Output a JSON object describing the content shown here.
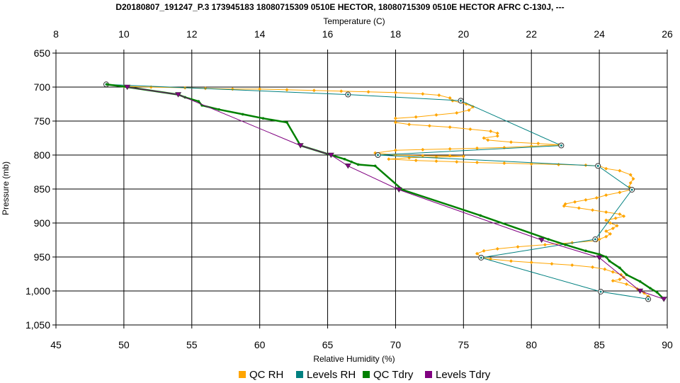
{
  "chart_data": {
    "type": "line",
    "title": "D20180807_191247_P.3 173945183 18080715309 0510E HECTOR, 18080715309 0510E HECTOR AFRC C-130J, ---",
    "top_axis_label": "Temperature (C)",
    "bottom_axis_label": "Relative Humidity (%)",
    "ylabel": "Pressure (mb)",
    "temperature_range": [
      8,
      26
    ],
    "temperature_ticks": [
      "8",
      "10",
      "12",
      "14",
      "16",
      "18",
      "20",
      "22",
      "24",
      "26"
    ],
    "temperature_tick_values": [
      8,
      10,
      12,
      14,
      16,
      18,
      20,
      22,
      24,
      26
    ],
    "rh_range": [
      45,
      90
    ],
    "rh_ticks": [
      "45",
      "50",
      "55",
      "60",
      "65",
      "70",
      "75",
      "80",
      "85",
      "90"
    ],
    "rh_tick_values": [
      45,
      50,
      55,
      60,
      65,
      70,
      75,
      80,
      85,
      90
    ],
    "pressure_range": [
      650,
      1050
    ],
    "pressure_reversed": true,
    "pressure_ticks": [
      "650",
      "700",
      "750",
      "800",
      "850",
      "900",
      "950",
      "1,000",
      "1,050"
    ],
    "pressure_tick_values": [
      650,
      700,
      750,
      800,
      850,
      900,
      950,
      1000,
      1050
    ],
    "grid": true,
    "legend_position": "bottom",
    "series": [
      {
        "name": "QC RH",
        "axis": "rh",
        "color": "#FFA500",
        "marker": "diamond",
        "points": [
          [
            48.7,
            696
          ],
          [
            50.0,
            699
          ],
          [
            52.0,
            700
          ],
          [
            54.5,
            701
          ],
          [
            56.0,
            702
          ],
          [
            58.0,
            703
          ],
          [
            60.0,
            703
          ],
          [
            62.0,
            704
          ],
          [
            64.0,
            705
          ],
          [
            66.0,
            706
          ],
          [
            68.0,
            707
          ],
          [
            70.0,
            708
          ],
          [
            72.0,
            710
          ],
          [
            73.2,
            712
          ],
          [
            74.0,
            716
          ],
          [
            74.2,
            720
          ],
          [
            75.2,
            725
          ],
          [
            75.7,
            729
          ],
          [
            75.4,
            734
          ],
          [
            74.5,
            738
          ],
          [
            73.0,
            741
          ],
          [
            71.5,
            744
          ],
          [
            70.0,
            746
          ],
          [
            70.0,
            752
          ],
          [
            71.0,
            755
          ],
          [
            72.5,
            757
          ],
          [
            74.0,
            759
          ],
          [
            75.5,
            762
          ],
          [
            77.0,
            765
          ],
          [
            77.5,
            768
          ],
          [
            77.5,
            772
          ],
          [
            76.5,
            775
          ],
          [
            76.8,
            778
          ],
          [
            78.5,
            781
          ],
          [
            80.5,
            783
          ],
          [
            82.0,
            785
          ],
          [
            80.0,
            787
          ],
          [
            78.0,
            789
          ],
          [
            76.0,
            790
          ],
          [
            74.0,
            791
          ],
          [
            72.0,
            792
          ],
          [
            70.0,
            793
          ],
          [
            68.5,
            797
          ],
          [
            70.0,
            800
          ],
          [
            72.0,
            801
          ],
          [
            74.0,
            801
          ],
          [
            75.0,
            802
          ],
          [
            73.0,
            803
          ],
          [
            71.0,
            804
          ],
          [
            69.5,
            806
          ],
          [
            71.5,
            808
          ],
          [
            73.0,
            809
          ],
          [
            74.5,
            810
          ],
          [
            76.0,
            811
          ],
          [
            78.0,
            812
          ],
          [
            80.0,
            813
          ],
          [
            82.0,
            814
          ],
          [
            84.0,
            815
          ],
          [
            85.0,
            816
          ],
          [
            85.5,
            820
          ],
          [
            86.5,
            823
          ],
          [
            87.3,
            829
          ],
          [
            87.5,
            835
          ],
          [
            87.3,
            841
          ],
          [
            87.2,
            847
          ],
          [
            87.3,
            851
          ],
          [
            86.5,
            855
          ],
          [
            85.5,
            859
          ],
          [
            84.8,
            863
          ],
          [
            84.0,
            866
          ],
          [
            83.2,
            869
          ],
          [
            82.5,
            872
          ],
          [
            82.4,
            875
          ],
          [
            83.5,
            878
          ],
          [
            84.5,
            881
          ],
          [
            85.5,
            884
          ],
          [
            86.5,
            887
          ],
          [
            86.8,
            890
          ],
          [
            86.2,
            893
          ],
          [
            85.5,
            896
          ],
          [
            85.8,
            900
          ],
          [
            86.3,
            904
          ],
          [
            86.0,
            908
          ],
          [
            85.5,
            912
          ],
          [
            85.8,
            916
          ],
          [
            85.5,
            920
          ],
          [
            85.0,
            924
          ],
          [
            84.8,
            926
          ],
          [
            83.0,
            929
          ],
          [
            81.0,
            932
          ],
          [
            79.0,
            935
          ],
          [
            77.5,
            938
          ],
          [
            76.5,
            941
          ],
          [
            76.0,
            945
          ],
          [
            76.3,
            950
          ],
          [
            77.0,
            953
          ],
          [
            78.5,
            956
          ],
          [
            80.0,
            958
          ],
          [
            81.5,
            960
          ],
          [
            83.0,
            962
          ],
          [
            84.5,
            965
          ],
          [
            85.4,
            968
          ],
          [
            86.0,
            972
          ],
          [
            86.6,
            976
          ],
          [
            86.8,
            980
          ],
          [
            86.5,
            983
          ],
          [
            86.0,
            985
          ],
          [
            87.0,
            990
          ],
          [
            87.8,
            997
          ],
          [
            88.3,
            1003
          ],
          [
            88.6,
            1008
          ],
          [
            88.5,
            1012
          ]
        ]
      },
      {
        "name": "Levels RH",
        "axis": "rh",
        "color": "#008080",
        "marker": "circle",
        "points": [
          [
            48.7,
            696
          ],
          [
            66.5,
            711
          ],
          [
            74.8,
            720
          ],
          [
            82.2,
            786
          ],
          [
            68.7,
            800
          ],
          [
            84.9,
            816
          ],
          [
            87.4,
            851
          ],
          [
            84.7,
            924
          ],
          [
            76.3,
            951
          ],
          [
            85.1,
            1001
          ],
          [
            88.6,
            1012
          ]
        ]
      },
      {
        "name": "QC Tdry",
        "axis": "temperature",
        "color": "#008000",
        "marker": "dot",
        "points": [
          [
            9.5,
            696
          ],
          [
            10.1,
            700
          ],
          [
            11.6,
            711
          ],
          [
            11.8,
            715
          ],
          [
            12.2,
            721
          ],
          [
            12.3,
            727
          ],
          [
            12.8,
            733
          ],
          [
            13.5,
            740
          ],
          [
            14.1,
            746
          ],
          [
            14.8,
            752
          ],
          [
            15.2,
            786
          ],
          [
            16.1,
            800
          ],
          [
            16.5,
            806
          ],
          [
            16.7,
            810
          ],
          [
            16.9,
            814
          ],
          [
            17.4,
            816
          ],
          [
            18.2,
            851
          ],
          [
            20.5,
            889
          ],
          [
            22.5,
            924
          ],
          [
            23.0,
            932
          ],
          [
            23.6,
            941
          ],
          [
            24.0,
            946
          ],
          [
            24.2,
            950
          ],
          [
            24.3,
            956
          ],
          [
            24.6,
            966
          ],
          [
            24.8,
            976
          ],
          [
            25.2,
            986
          ],
          [
            25.5,
            996
          ],
          [
            25.7,
            1002
          ],
          [
            25.9,
            1012
          ]
        ]
      },
      {
        "name": "Levels Tdry",
        "axis": "temperature",
        "color": "#800080",
        "marker": "triangle",
        "points": [
          [
            10.1,
            700
          ],
          [
            11.6,
            711
          ],
          [
            15.2,
            786
          ],
          [
            16.1,
            800
          ],
          [
            16.6,
            816
          ],
          [
            18.1,
            851
          ],
          [
            22.3,
            925
          ],
          [
            24.0,
            951
          ],
          [
            25.2,
            1000
          ],
          [
            25.9,
            1012
          ]
        ]
      }
    ]
  }
}
